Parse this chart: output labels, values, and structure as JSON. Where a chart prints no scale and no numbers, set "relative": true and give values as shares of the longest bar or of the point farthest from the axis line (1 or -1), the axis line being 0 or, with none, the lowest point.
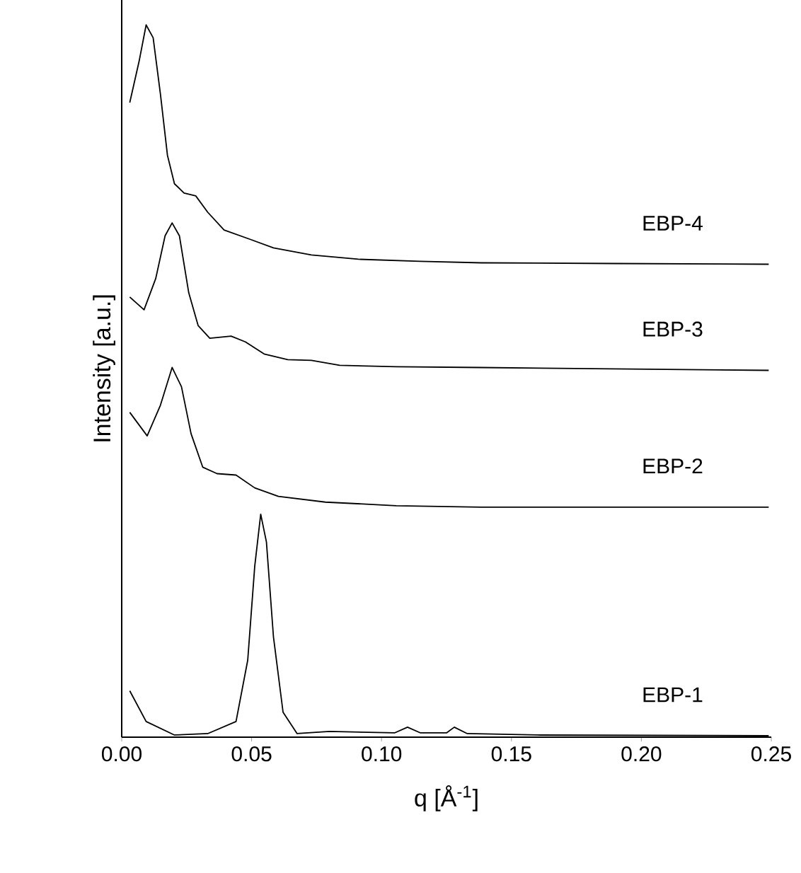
{
  "chart_data": {
    "type": "line",
    "relative": true,
    "xlabel": "q [Å$^{-1}$]",
    "ylabel": "Intensity [a.u.]",
    "xlim": [
      0,
      0.25
    ],
    "xticks": [
      {
        "value": 0,
        "label": "0.00"
      },
      {
        "value": 0.05,
        "label": "0.05"
      },
      {
        "value": 0.1,
        "label": "0.10"
      },
      {
        "value": 0.15,
        "label": "0.15"
      },
      {
        "value": 0.2,
        "label": "0.20"
      },
      {
        "value": 0.25,
        "label": "0.25"
      }
    ],
    "grid": false,
    "legend": false,
    "marker": "none",
    "line_style": "solid",
    "series": [
      {
        "name": "EBP-1",
        "color": "#000000",
        "x": [
          0.0031,
          0.0094,
          0.0203,
          0.0331,
          0.044,
          0.0485,
          0.0512,
          0.0535,
          0.0557,
          0.0584,
          0.0621,
          0.0675,
          0.08,
          0.105,
          0.11,
          0.115,
          0.125,
          0.128,
          0.133,
          0.16,
          0.249
        ],
        "values": [
          0.065,
          0.022,
          0.003,
          0.005,
          0.022,
          0.108,
          0.24,
          0.313,
          0.274,
          0.141,
          0.035,
          0.005,
          0.008,
          0.006,
          0.014,
          0.006,
          0.006,
          0.014,
          0.005,
          0.003,
          0.002
        ]
      },
      {
        "name": "EBP-2",
        "color": "#000000",
        "x": [
          0.0031,
          0.0098,
          0.0149,
          0.0194,
          0.023,
          0.0267,
          0.0312,
          0.0367,
          0.044,
          0.0512,
          0.0603,
          0.0784,
          0.1057,
          0.1383,
          0.249
        ],
        "values": [
          0.456,
          0.423,
          0.466,
          0.519,
          0.492,
          0.426,
          0.379,
          0.37,
          0.368,
          0.35,
          0.338,
          0.33,
          0.325,
          0.323,
          0.323
        ]
      },
      {
        "name": "EBP-3",
        "color": "#000000",
        "x": [
          0.0031,
          0.0086,
          0.0131,
          0.0167,
          0.0194,
          0.0222,
          0.0258,
          0.0294,
          0.0339,
          0.0421,
          0.0476,
          0.0548,
          0.0639,
          0.073,
          0.0839,
          0.1057,
          0.1383,
          0.249
        ],
        "values": [
          0.618,
          0.6,
          0.644,
          0.704,
          0.722,
          0.704,
          0.624,
          0.578,
          0.56,
          0.563,
          0.555,
          0.538,
          0.53,
          0.529,
          0.522,
          0.52,
          0.519,
          0.515
        ]
      },
      {
        "name": "EBP-4",
        "color": "#000000",
        "x": [
          0.0031,
          0.0067,
          0.0094,
          0.0121,
          0.0149,
          0.0176,
          0.0203,
          0.024,
          0.0285,
          0.0331,
          0.0394,
          0.0494,
          0.0584,
          0.073,
          0.0911,
          0.1148,
          0.1383,
          0.19,
          0.249
        ],
        "values": [
          0.891,
          0.949,
          1.0,
          0.982,
          0.903,
          0.817,
          0.777,
          0.764,
          0.76,
          0.737,
          0.712,
          0.699,
          0.687,
          0.677,
          0.671,
          0.668,
          0.666,
          0.665,
          0.664
        ]
      }
    ]
  }
}
